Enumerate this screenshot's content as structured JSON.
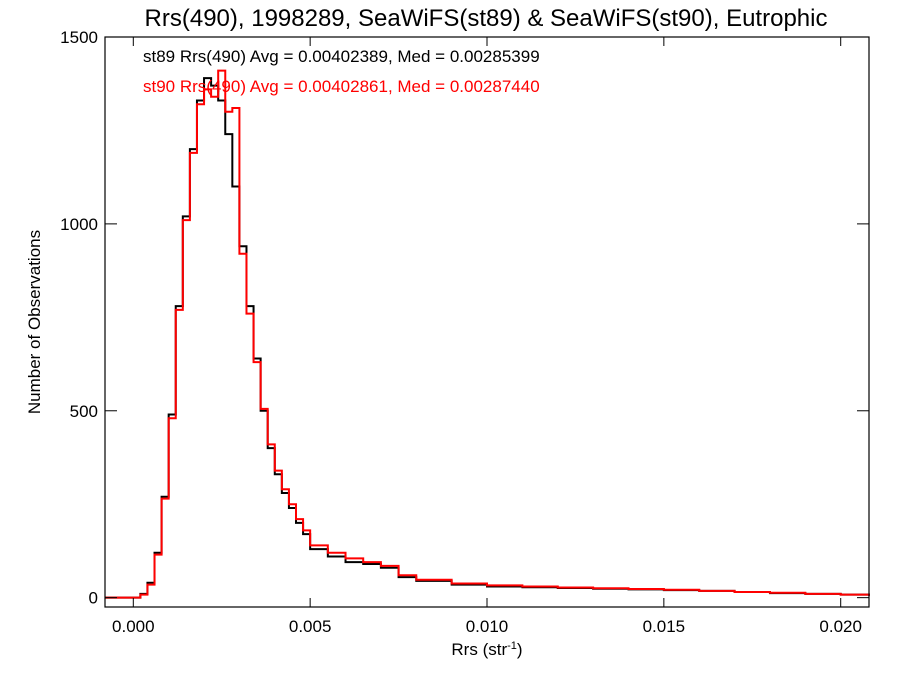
{
  "chart_data": {
    "type": "line",
    "title": "Rrs(490), 1998289, SeaWiFS(st89) & SeaWiFS(st90), Eutrophic",
    "xlabel_main": "Rrs (str",
    "xlabel_sup": "-1",
    "xlabel_close": ")",
    "ylabel": "Number of Observations",
    "xlim": [
      -0.0008,
      0.0208
    ],
    "ylim": [
      -25,
      1500
    ],
    "xticks": [
      0.0,
      0.005,
      0.01,
      0.015,
      0.02
    ],
    "xtick_labels": [
      "0.000",
      "0.005",
      "0.010",
      "0.015",
      "0.020"
    ],
    "yticks": [
      0,
      500,
      1000,
      1500
    ],
    "ytick_labels": [
      "0",
      "500",
      "1000",
      "1500"
    ],
    "step": true,
    "grid": false,
    "legend": "top-left",
    "series": [
      {
        "name": "st89 Rrs(490) Avg = 0.00402389, Med = 0.00285399",
        "color": "#000000",
        "x": [
          -0.0008,
          0.0,
          0.0002,
          0.0004,
          0.0006,
          0.0008,
          0.001,
          0.0012,
          0.0014,
          0.0016,
          0.0018,
          0.002,
          0.0022,
          0.0024,
          0.0026,
          0.0028,
          0.003,
          0.0032,
          0.0034,
          0.0036,
          0.0038,
          0.004,
          0.0042,
          0.0044,
          0.0046,
          0.0048,
          0.005,
          0.0055,
          0.006,
          0.0065,
          0.007,
          0.0075,
          0.008,
          0.009,
          0.01,
          0.011,
          0.012,
          0.013,
          0.014,
          0.015,
          0.016,
          0.017,
          0.018,
          0.019,
          0.02,
          0.0208
        ],
        "y": [
          0,
          0,
          10,
          40,
          120,
          270,
          490,
          780,
          1020,
          1200,
          1330,
          1390,
          1370,
          1330,
          1240,
          1100,
          940,
          780,
          640,
          500,
          400,
          330,
          280,
          240,
          200,
          170,
          130,
          110,
          95,
          90,
          80,
          55,
          45,
          35,
          30,
          28,
          26,
          24,
          22,
          20,
          18,
          15,
          12,
          10,
          8,
          5
        ]
      },
      {
        "name": "st90 Rrs(490) Avg = 0.00402861, Med = 0.00287440",
        "color": "#ff0000",
        "x": [
          -0.0008,
          0.0,
          0.0002,
          0.0004,
          0.0006,
          0.0008,
          0.001,
          0.0012,
          0.0014,
          0.0016,
          0.0018,
          0.002,
          0.0022,
          0.0024,
          0.0026,
          0.0028,
          0.003,
          0.0032,
          0.0034,
          0.0036,
          0.0038,
          0.004,
          0.0042,
          0.0044,
          0.0046,
          0.0048,
          0.005,
          0.0055,
          0.006,
          0.0065,
          0.007,
          0.0075,
          0.008,
          0.009,
          0.01,
          0.011,
          0.012,
          0.013,
          0.014,
          0.015,
          0.016,
          0.017,
          0.018,
          0.019,
          0.02,
          0.0208
        ],
        "y": [
          0,
          0,
          8,
          35,
          115,
          265,
          480,
          770,
          1010,
          1190,
          1320,
          1360,
          1340,
          1410,
          1300,
          1310,
          920,
          760,
          630,
          505,
          410,
          340,
          290,
          250,
          210,
          180,
          140,
          120,
          105,
          95,
          85,
          60,
          48,
          38,
          33,
          30,
          27,
          25,
          23,
          21,
          18,
          15,
          13,
          10,
          8,
          5
        ]
      }
    ]
  }
}
